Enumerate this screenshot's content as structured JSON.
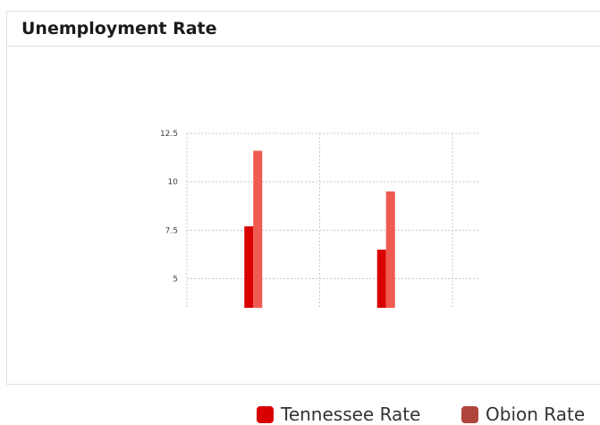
{
  "panel": {
    "title": "Unemployment Rate"
  },
  "chart_data": {
    "type": "bar",
    "title": "Unemployment Rate",
    "xlabel": "",
    "ylabel": "",
    "categories": [
      "",
      ""
    ],
    "yticks": [
      "5",
      "7.5",
      "10",
      "12.5"
    ],
    "ylim": [
      3.5,
      12.5
    ],
    "grid": true,
    "legend_position": "bottom-right",
    "series": [
      {
        "name": "Tennessee Rate",
        "color": "#d80000",
        "values": [
          7.7,
          6.5
        ]
      },
      {
        "name": "Obion Rate",
        "color": "#f05a50",
        "values": [
          11.6,
          9.5
        ]
      }
    ]
  },
  "legend": {
    "items": [
      {
        "label": "Tennessee Rate",
        "color": "#d80000"
      },
      {
        "label": "Obion Rate",
        "color": "#b0453b"
      }
    ]
  }
}
